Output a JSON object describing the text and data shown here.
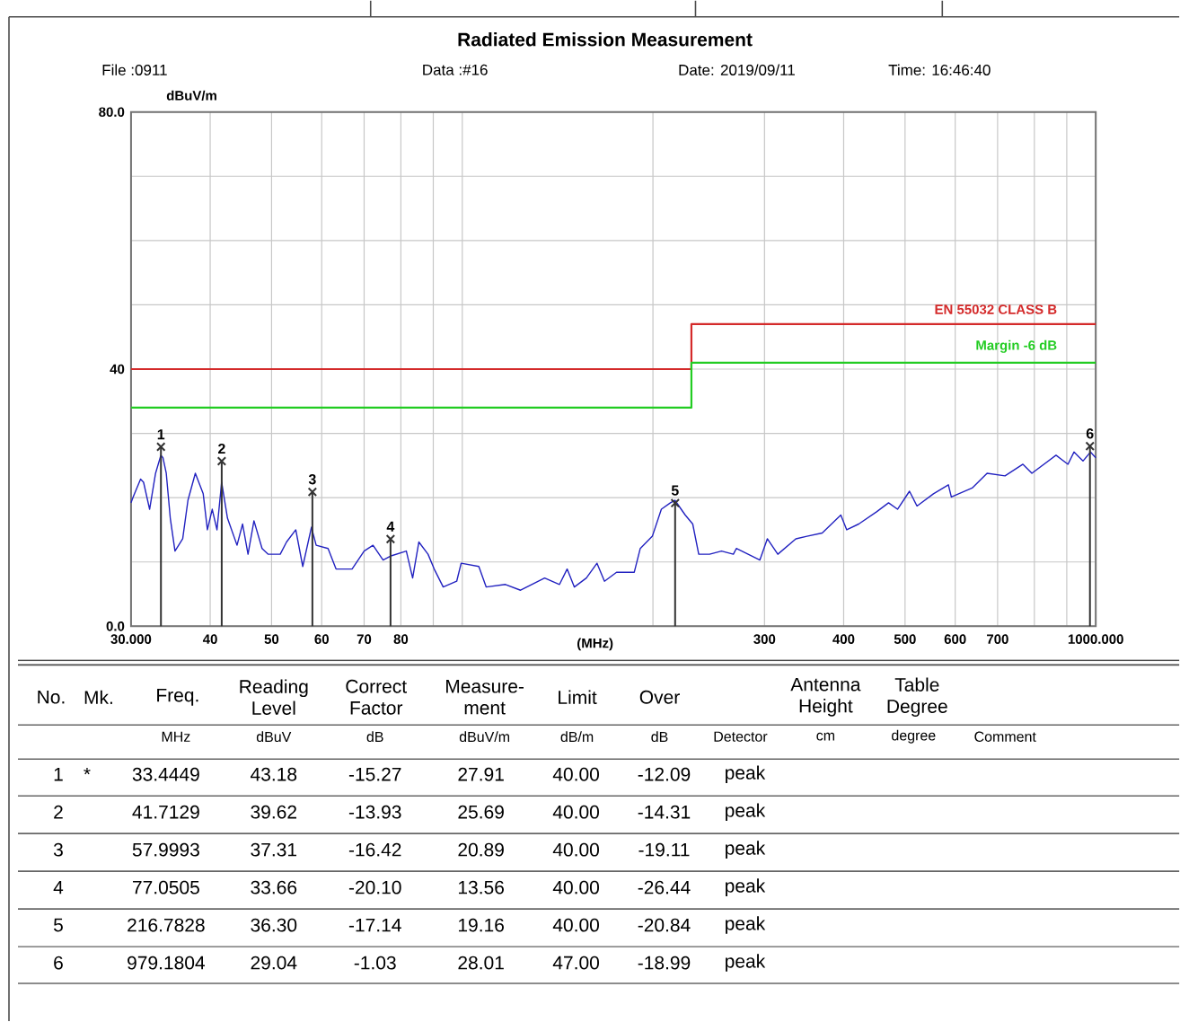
{
  "chart_data": {
    "type": "line",
    "title": "Radiated Emission Measurement",
    "xlabel": "(MHz)",
    "ylabel": "dBuV/m",
    "annotations": [
      "File :0911",
      "Data :#16",
      "Date: 2019/09/11",
      "Time: 16:46:40",
      "No.",
      "Mk.",
      "Freq.",
      "Reading Level",
      "Correct Factor",
      "Measure-ment",
      "Limit",
      "Over",
      "Antenna Height",
      "Table Degree",
      "MHz",
      "dBuV",
      "dB",
      "dBuV/m",
      "dB/m",
      "dB",
      "Detector",
      "cm",
      "degree",
      "Comment",
      "1",
      "*",
      "33.4449",
      "43.18",
      "-15.27",
      "27.91",
      "40.00",
      "-12.09",
      "peak",
      "2",
      "41.7129",
      "39.62",
      "-13.93",
      "25.69",
      "40.00",
      "-14.31",
      "peak",
      "3",
      "57.9993",
      "37.31",
      "-16.42",
      "20.89",
      "40.00",
      "-19.11",
      "peak",
      "4",
      "77.0505",
      "33.66",
      "-20.10",
      "13.56",
      "40.00",
      "-26.44",
      "peak",
      "5",
      "216.7828",
      "36.30",
      "-17.14",
      "19.16",
      "40.00",
      "-20.84",
      "peak",
      "6",
      "979.1804",
      "29.04",
      "-1.03",
      "28.01",
      "47.00",
      "-18.99",
      "peak",
      {
        "text": "1",
        "x": 33.4449,
        "y": 27.91
      },
      {
        "text": "2",
        "x": 41.7129,
        "y": 25.69
      },
      {
        "text": "3",
        "x": 57.9993,
        "y": 20.89
      },
      {
        "text": "4",
        "x": 77.0505,
        "y": 13.56
      },
      {
        "text": "5",
        "x": 216.7828,
        "y": 19.16
      },
      {
        "text": "6",
        "x": 979.1804,
        "y": 28.01
      }
    ],
    "log": "x",
    "grid": true,
    "xlim": [
      30,
      1000
    ],
    "ylim": [
      0,
      80
    ],
    "xticks": [
      {
        "value": 30,
        "label": "30.000"
      },
      40,
      50,
      60,
      70,
      80,
      {
        "value": 90,
        "label": null
      },
      {
        "value": 100,
        "label": null
      },
      {
        "value": 200,
        "label": null
      },
      300,
      400,
      500,
      600,
      700,
      {
        "value": 800,
        "label": null
      },
      {
        "value": 900,
        "label": null
      },
      {
        "value": 1000,
        "label": "1000.000"
      }
    ],
    "yticks": [
      {
        "value": 0,
        "label": "0.0"
      },
      {
        "value": 10,
        "label": null
      },
      {
        "value": 20,
        "label": null
      },
      {
        "value": 30,
        "label": null
      },
      40,
      {
        "value": 50,
        "label": null
      },
      {
        "value": 60,
        "label": null
      },
      {
        "value": 70,
        "label": null
      },
      {
        "value": 80,
        "label": "80.0"
      }
    ],
    "series": [
      {
        "color": "#2222c0",
        "x": [
          30.0,
          30.23,
          31.06,
          31.4,
          32.1,
          32.8,
          33.44,
          33.7,
          34.1,
          34.6,
          35.2,
          36.2,
          36.9,
          37.9,
          39.0,
          39.6,
          40.3,
          41.0,
          41.7,
          42.6,
          44.1,
          45.0,
          45.9,
          46.9,
          48.3,
          49.4,
          51.6,
          52.8,
          54.6,
          56.0,
          57.8,
          58.8,
          61.4,
          63.2,
          67.0,
          70.0,
          72.3,
          75.0,
          77.0,
          81.6,
          83.5,
          85.4,
          88.3,
          90.3,
          93.3,
          98.0,
          99.6,
          106.2,
          109.1,
          117.0,
          123.6,
          134.9,
          142.4,
          146.4,
          150.3,
          157.0,
          163.2,
          167.7,
          175.2,
          186.9,
          191.0,
          199.6,
          206.2,
          213.1,
          216.6,
          224.9,
          231.1,
          236.2,
          245.7,
          256.6,
          267.9,
          270.8,
          295.0,
          303.1,
          314.9,
          336.2,
          350.1,
          370.0,
          395.9,
          404.5,
          422.5,
          450.9,
          470.9,
          486.5,
          508.1,
          522.2,
          554.3,
          585.3,
          591.6,
          638.1,
          673.8,
          719.1,
          767.6,
          793.0,
          865.5,
          904.0,
          924.0,
          954.7,
          981.0,
          1000
        ],
        "values": [
          19.2,
          20.1,
          22.9,
          22.4,
          18.2,
          23.8,
          26.6,
          26.2,
          23.8,
          16.8,
          11.7,
          13.6,
          19.6,
          23.8,
          20.6,
          15.0,
          18.2,
          15.0,
          22.4,
          16.8,
          12.6,
          15.9,
          11.2,
          16.4,
          12.1,
          11.2,
          11.2,
          13.1,
          15.0,
          9.3,
          15.4,
          12.6,
          12.1,
          8.9,
          8.9,
          11.7,
          12.6,
          10.3,
          10.9,
          11.7,
          7.5,
          13.1,
          11.2,
          8.9,
          6.1,
          7.0,
          9.8,
          9.3,
          6.1,
          6.5,
          5.6,
          7.5,
          6.5,
          8.9,
          6.1,
          7.5,
          9.8,
          7.0,
          8.4,
          8.4,
          12.1,
          14.0,
          18.2,
          19.2,
          19.6,
          17.3,
          15.9,
          11.2,
          11.2,
          11.7,
          11.2,
          12.1,
          10.3,
          13.6,
          11.2,
          13.6,
          14.0,
          14.5,
          17.3,
          15.0,
          15.9,
          17.8,
          19.2,
          18.2,
          21.0,
          18.7,
          20.6,
          22.0,
          20.1,
          21.5,
          23.8,
          23.4,
          25.2,
          23.8,
          26.6,
          25.2,
          27.1,
          25.7,
          27.1,
          26.2
        ]
      },
      {
        "type": "step",
        "name": "EN 55032 CLASS B",
        "color": "#d42a2a",
        "x": [
          30,
          230,
          1000
        ],
        "values": [
          40,
          47,
          47
        ]
      },
      {
        "type": "step",
        "name": "Margin -6 dB",
        "color": "#22cc22",
        "x": [
          30,
          230,
          1000
        ],
        "values": [
          34,
          41,
          41
        ]
      },
      {
        "type": "lollipop",
        "color": "#333333",
        "marker": "cross",
        "x": [
          33.4449,
          41.7129,
          57.9993,
          77.0505,
          216.7828,
          979.1804
        ],
        "values": [
          27.91,
          25.69,
          20.89,
          13.56,
          19.16,
          28.01
        ]
      }
    ]
  }
}
